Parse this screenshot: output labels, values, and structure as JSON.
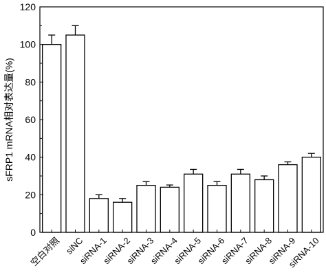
{
  "chart_data": {
    "type": "bar",
    "title": "",
    "xlabel": "",
    "ylabel": "sFRP1 mRNA相对表达量(%)",
    "ylim": [
      0,
      120
    ],
    "yticks": [
      0,
      20,
      40,
      60,
      80,
      100,
      120
    ],
    "grid": false,
    "legend": "none",
    "bar_color": "#ffffff",
    "bar_stroke": "#000000",
    "categories": [
      "空白对照",
      "siNC",
      "siRNA-1",
      "siRNA-2",
      "siRNA-3",
      "siRNA-4",
      "siRNA-5",
      "siRNA-6",
      "siRNA-7",
      "siRNA-8",
      "siRNA-9",
      "siRNA-10"
    ],
    "values": [
      100,
      105,
      18,
      16,
      25,
      24,
      31,
      25,
      31,
      28,
      36,
      40
    ],
    "errors": [
      5,
      5,
      2,
      2,
      2,
      1.2,
      2.5,
      2,
      2.5,
      2,
      1.5,
      2
    ]
  }
}
